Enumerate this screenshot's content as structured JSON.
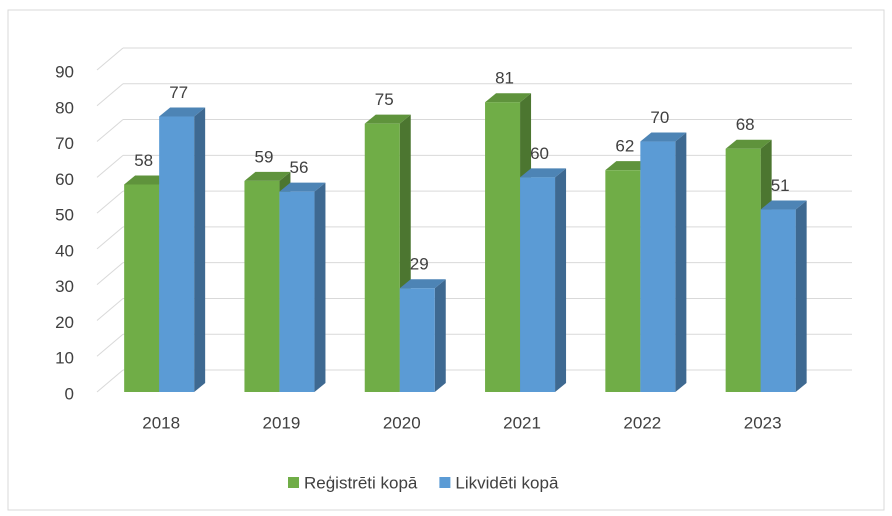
{
  "chart_data": {
    "type": "bar3d",
    "categories": [
      "2018",
      "2019",
      "2020",
      "2021",
      "2022",
      "2023"
    ],
    "series": [
      {
        "name": "Reģistrēti kopā",
        "color": "#70ad47",
        "values": [
          58,
          59,
          75,
          81,
          62,
          68
        ]
      },
      {
        "name": "Likvidēti kopā",
        "color": "#5b9bd5",
        "values": [
          77,
          56,
          29,
          60,
          70,
          51
        ]
      }
    ],
    "ylim": [
      0,
      90
    ],
    "yticks": [
      0,
      10,
      20,
      30,
      40,
      50,
      60,
      70,
      80,
      90
    ],
    "grid": true,
    "legend": "bottom"
  }
}
